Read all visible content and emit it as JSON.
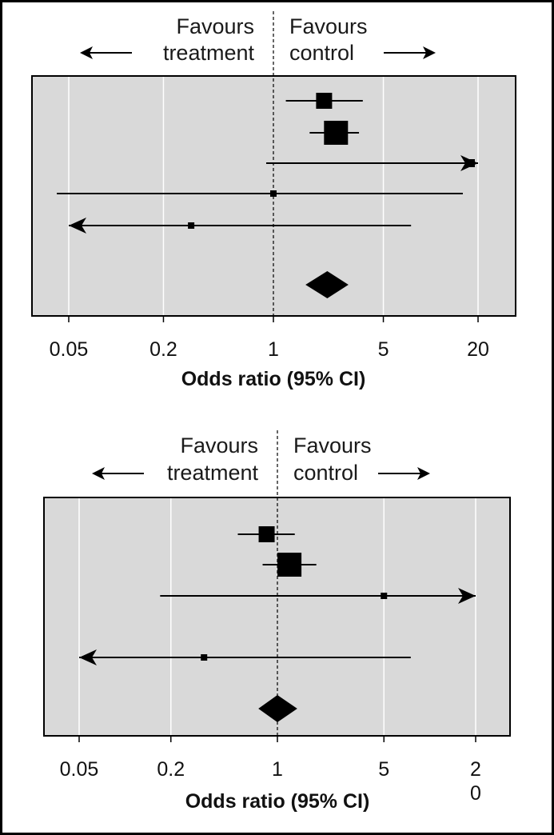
{
  "chart_data": [
    {
      "type": "forest",
      "xlabel": "Odds ratio (95% CI)",
      "xscale": "log",
      "xlim": [
        0.035,
        33
      ],
      "tick_values": [
        0.05,
        0.2,
        1,
        5,
        20
      ],
      "tick_labels": [
        "0.05",
        "0.2",
        "1",
        "5",
        "20"
      ],
      "reference_line": 1,
      "favours_left": [
        "Favours",
        "treatment"
      ],
      "favours_right": [
        "Favours",
        "control"
      ],
      "grid": true,
      "background": "#d9d9d9",
      "studies": [
        {
          "or": 2.1,
          "lower": 1.2,
          "upper": 3.7,
          "weight": "medium",
          "arrow_left": false,
          "arrow_right": false
        },
        {
          "or": 2.5,
          "lower": 1.7,
          "upper": 3.5,
          "weight": "large",
          "arrow_left": false,
          "arrow_right": false
        },
        {
          "or": 18,
          "lower": 0.9,
          "upper": 20,
          "weight": "small",
          "arrow_left": false,
          "arrow_right": true
        },
        {
          "or": 1.0,
          "lower": 0.042,
          "upper": 16,
          "weight": "tiny",
          "arrow_left": false,
          "arrow_right": false
        },
        {
          "or": 0.3,
          "lower": 0.05,
          "upper": 7.5,
          "weight": "tiny",
          "arrow_left": true,
          "arrow_right": false
        }
      ],
      "pooled": {
        "or": 2.2,
        "lower": 1.6,
        "upper": 3.0
      }
    },
    {
      "type": "forest",
      "xlabel": "Odds ratio (95% CI)",
      "xscale": "log",
      "xlim": [
        0.035,
        33
      ],
      "tick_values": [
        0.05,
        0.2,
        1,
        5,
        20
      ],
      "tick_labels": [
        "0.05",
        "0.2",
        "1",
        "5",
        "2\n0"
      ],
      "reference_line": 1,
      "favours_left": [
        "Favours",
        "treatment"
      ],
      "favours_right": [
        "Favours",
        "control"
      ],
      "grid": true,
      "background": "#d9d9d9",
      "studies": [
        {
          "or": 0.85,
          "lower": 0.55,
          "upper": 1.3,
          "weight": "medium",
          "arrow_left": false,
          "arrow_right": false
        },
        {
          "or": 1.2,
          "lower": 0.8,
          "upper": 1.8,
          "weight": "large",
          "arrow_left": false,
          "arrow_right": false
        },
        {
          "or": 5,
          "lower": 0.17,
          "upper": 20,
          "weight": "tiny",
          "arrow_left": false,
          "arrow_right": true
        },
        {
          "or": 0.33,
          "lower": 0.05,
          "upper": 7.5,
          "weight": "tiny",
          "arrow_left": true,
          "arrow_right": false
        }
      ],
      "pooled": {
        "or": 1.0,
        "lower": 0.75,
        "upper": 1.35
      }
    }
  ]
}
